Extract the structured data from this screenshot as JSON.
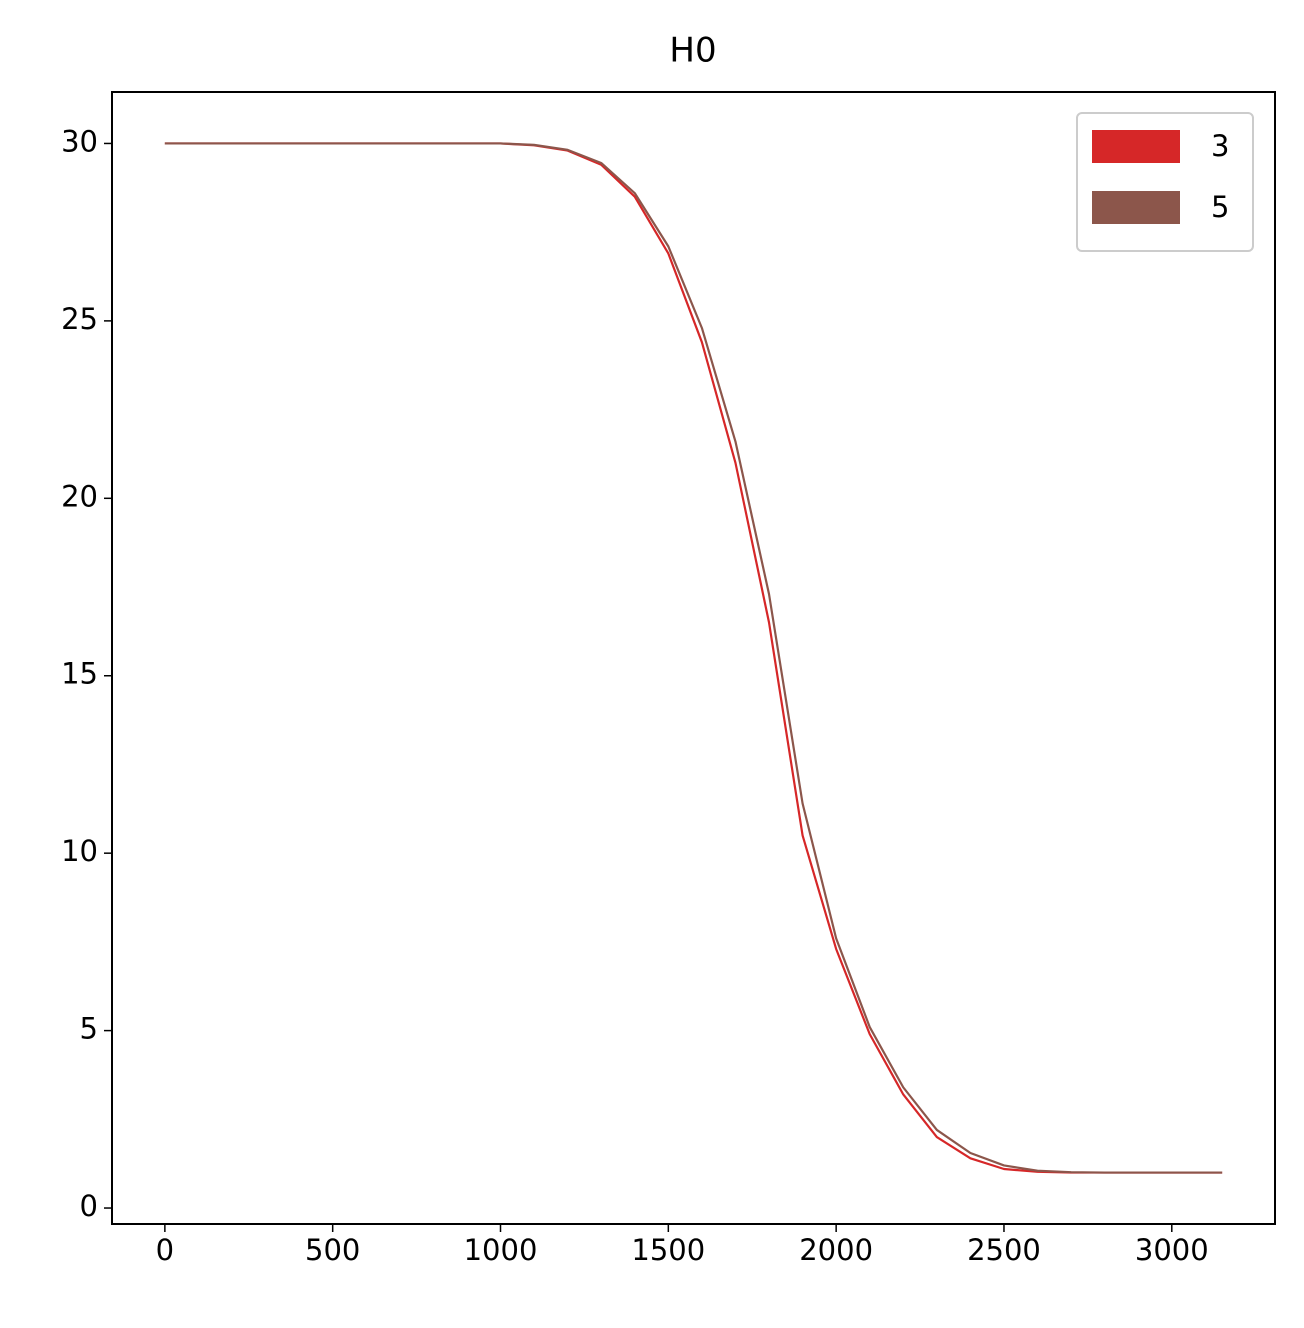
{
  "chart_data": {
    "type": "line",
    "title": "H0",
    "x": [
      0,
      100,
      200,
      300,
      400,
      500,
      600,
      700,
      800,
      900,
      1000,
      1100,
      1200,
      1300,
      1400,
      1500,
      1600,
      1700,
      1800,
      1900,
      2000,
      2100,
      2200,
      2300,
      2400,
      2500,
      2600,
      2700,
      2800,
      2900,
      3000,
      3100,
      3150
    ],
    "series": [
      {
        "name": "3",
        "color": "#d62728",
        "values": [
          30,
          30,
          30,
          30,
          30,
          30,
          30,
          30,
          30,
          30,
          30,
          29.95,
          29.8,
          29.4,
          28.5,
          26.9,
          24.4,
          21.0,
          16.5,
          10.5,
          7.3,
          4.9,
          3.2,
          2.0,
          1.4,
          1.1,
          1.02,
          1.0,
          1.0,
          1.0,
          1.0,
          1.0,
          1.0
        ]
      },
      {
        "name": "5",
        "color": "#8c564b",
        "values": [
          30,
          30,
          30,
          30,
          30,
          30,
          30,
          30,
          30,
          30,
          30,
          29.96,
          29.82,
          29.45,
          28.6,
          27.1,
          24.8,
          21.6,
          17.3,
          11.4,
          7.6,
          5.1,
          3.4,
          2.2,
          1.55,
          1.2,
          1.05,
          1.01,
          1.0,
          1.0,
          1.0,
          1.0,
          1.0
        ]
      }
    ],
    "xlim": [
      -157.5,
      3307.5
    ],
    "xticks": [
      0,
      500,
      1000,
      1500,
      2000,
      2500,
      3000
    ],
    "ylim": [
      -0.45,
      31.45
    ],
    "yticks": [
      0,
      5,
      10,
      15,
      20,
      25,
      30
    ],
    "legend": "upper right",
    "grid": false
  }
}
